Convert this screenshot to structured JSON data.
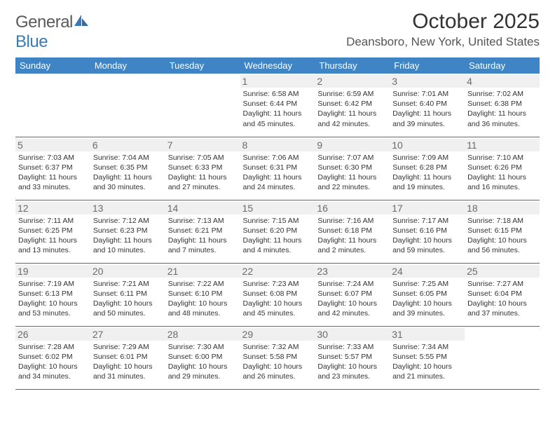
{
  "logo": {
    "general": "General",
    "blue": "Blue"
  },
  "title": "October 2025",
  "location": "Deansboro, New York, United States",
  "colors": {
    "header_bg": "#3f84c4",
    "header_fg": "#ffffff",
    "border": "#3f6f9e",
    "daynum_bg": "#f0f0f0",
    "logo_blue": "#3a7ab8"
  },
  "dayHeaders": [
    "Sunday",
    "Monday",
    "Tuesday",
    "Wednesday",
    "Thursday",
    "Friday",
    "Saturday"
  ],
  "weeks": [
    [
      {
        "n": "",
        "lines": []
      },
      {
        "n": "",
        "lines": []
      },
      {
        "n": "",
        "lines": []
      },
      {
        "n": "1",
        "lines": [
          "Sunrise: 6:58 AM",
          "Sunset: 6:44 PM",
          "Daylight: 11 hours and 45 minutes."
        ]
      },
      {
        "n": "2",
        "lines": [
          "Sunrise: 6:59 AM",
          "Sunset: 6:42 PM",
          "Daylight: 11 hours and 42 minutes."
        ]
      },
      {
        "n": "3",
        "lines": [
          "Sunrise: 7:01 AM",
          "Sunset: 6:40 PM",
          "Daylight: 11 hours and 39 minutes."
        ]
      },
      {
        "n": "4",
        "lines": [
          "Sunrise: 7:02 AM",
          "Sunset: 6:38 PM",
          "Daylight: 11 hours and 36 minutes."
        ]
      }
    ],
    [
      {
        "n": "5",
        "lines": [
          "Sunrise: 7:03 AM",
          "Sunset: 6:37 PM",
          "Daylight: 11 hours and 33 minutes."
        ]
      },
      {
        "n": "6",
        "lines": [
          "Sunrise: 7:04 AM",
          "Sunset: 6:35 PM",
          "Daylight: 11 hours and 30 minutes."
        ]
      },
      {
        "n": "7",
        "lines": [
          "Sunrise: 7:05 AM",
          "Sunset: 6:33 PM",
          "Daylight: 11 hours and 27 minutes."
        ]
      },
      {
        "n": "8",
        "lines": [
          "Sunrise: 7:06 AM",
          "Sunset: 6:31 PM",
          "Daylight: 11 hours and 24 minutes."
        ]
      },
      {
        "n": "9",
        "lines": [
          "Sunrise: 7:07 AM",
          "Sunset: 6:30 PM",
          "Daylight: 11 hours and 22 minutes."
        ]
      },
      {
        "n": "10",
        "lines": [
          "Sunrise: 7:09 AM",
          "Sunset: 6:28 PM",
          "Daylight: 11 hours and 19 minutes."
        ]
      },
      {
        "n": "11",
        "lines": [
          "Sunrise: 7:10 AM",
          "Sunset: 6:26 PM",
          "Daylight: 11 hours and 16 minutes."
        ]
      }
    ],
    [
      {
        "n": "12",
        "lines": [
          "Sunrise: 7:11 AM",
          "Sunset: 6:25 PM",
          "Daylight: 11 hours and 13 minutes."
        ]
      },
      {
        "n": "13",
        "lines": [
          "Sunrise: 7:12 AM",
          "Sunset: 6:23 PM",
          "Daylight: 11 hours and 10 minutes."
        ]
      },
      {
        "n": "14",
        "lines": [
          "Sunrise: 7:13 AM",
          "Sunset: 6:21 PM",
          "Daylight: 11 hours and 7 minutes."
        ]
      },
      {
        "n": "15",
        "lines": [
          "Sunrise: 7:15 AM",
          "Sunset: 6:20 PM",
          "Daylight: 11 hours and 4 minutes."
        ]
      },
      {
        "n": "16",
        "lines": [
          "Sunrise: 7:16 AM",
          "Sunset: 6:18 PM",
          "Daylight: 11 hours and 2 minutes."
        ]
      },
      {
        "n": "17",
        "lines": [
          "Sunrise: 7:17 AM",
          "Sunset: 6:16 PM",
          "Daylight: 10 hours and 59 minutes."
        ]
      },
      {
        "n": "18",
        "lines": [
          "Sunrise: 7:18 AM",
          "Sunset: 6:15 PM",
          "Daylight: 10 hours and 56 minutes."
        ]
      }
    ],
    [
      {
        "n": "19",
        "lines": [
          "Sunrise: 7:19 AM",
          "Sunset: 6:13 PM",
          "Daylight: 10 hours and 53 minutes."
        ]
      },
      {
        "n": "20",
        "lines": [
          "Sunrise: 7:21 AM",
          "Sunset: 6:11 PM",
          "Daylight: 10 hours and 50 minutes."
        ]
      },
      {
        "n": "21",
        "lines": [
          "Sunrise: 7:22 AM",
          "Sunset: 6:10 PM",
          "Daylight: 10 hours and 48 minutes."
        ]
      },
      {
        "n": "22",
        "lines": [
          "Sunrise: 7:23 AM",
          "Sunset: 6:08 PM",
          "Daylight: 10 hours and 45 minutes."
        ]
      },
      {
        "n": "23",
        "lines": [
          "Sunrise: 7:24 AM",
          "Sunset: 6:07 PM",
          "Daylight: 10 hours and 42 minutes."
        ]
      },
      {
        "n": "24",
        "lines": [
          "Sunrise: 7:25 AM",
          "Sunset: 6:05 PM",
          "Daylight: 10 hours and 39 minutes."
        ]
      },
      {
        "n": "25",
        "lines": [
          "Sunrise: 7:27 AM",
          "Sunset: 6:04 PM",
          "Daylight: 10 hours and 37 minutes."
        ]
      }
    ],
    [
      {
        "n": "26",
        "lines": [
          "Sunrise: 7:28 AM",
          "Sunset: 6:02 PM",
          "Daylight: 10 hours and 34 minutes."
        ]
      },
      {
        "n": "27",
        "lines": [
          "Sunrise: 7:29 AM",
          "Sunset: 6:01 PM",
          "Daylight: 10 hours and 31 minutes."
        ]
      },
      {
        "n": "28",
        "lines": [
          "Sunrise: 7:30 AM",
          "Sunset: 6:00 PM",
          "Daylight: 10 hours and 29 minutes."
        ]
      },
      {
        "n": "29",
        "lines": [
          "Sunrise: 7:32 AM",
          "Sunset: 5:58 PM",
          "Daylight: 10 hours and 26 minutes."
        ]
      },
      {
        "n": "30",
        "lines": [
          "Sunrise: 7:33 AM",
          "Sunset: 5:57 PM",
          "Daylight: 10 hours and 23 minutes."
        ]
      },
      {
        "n": "31",
        "lines": [
          "Sunrise: 7:34 AM",
          "Sunset: 5:55 PM",
          "Daylight: 10 hours and 21 minutes."
        ]
      },
      {
        "n": "",
        "lines": []
      }
    ]
  ]
}
